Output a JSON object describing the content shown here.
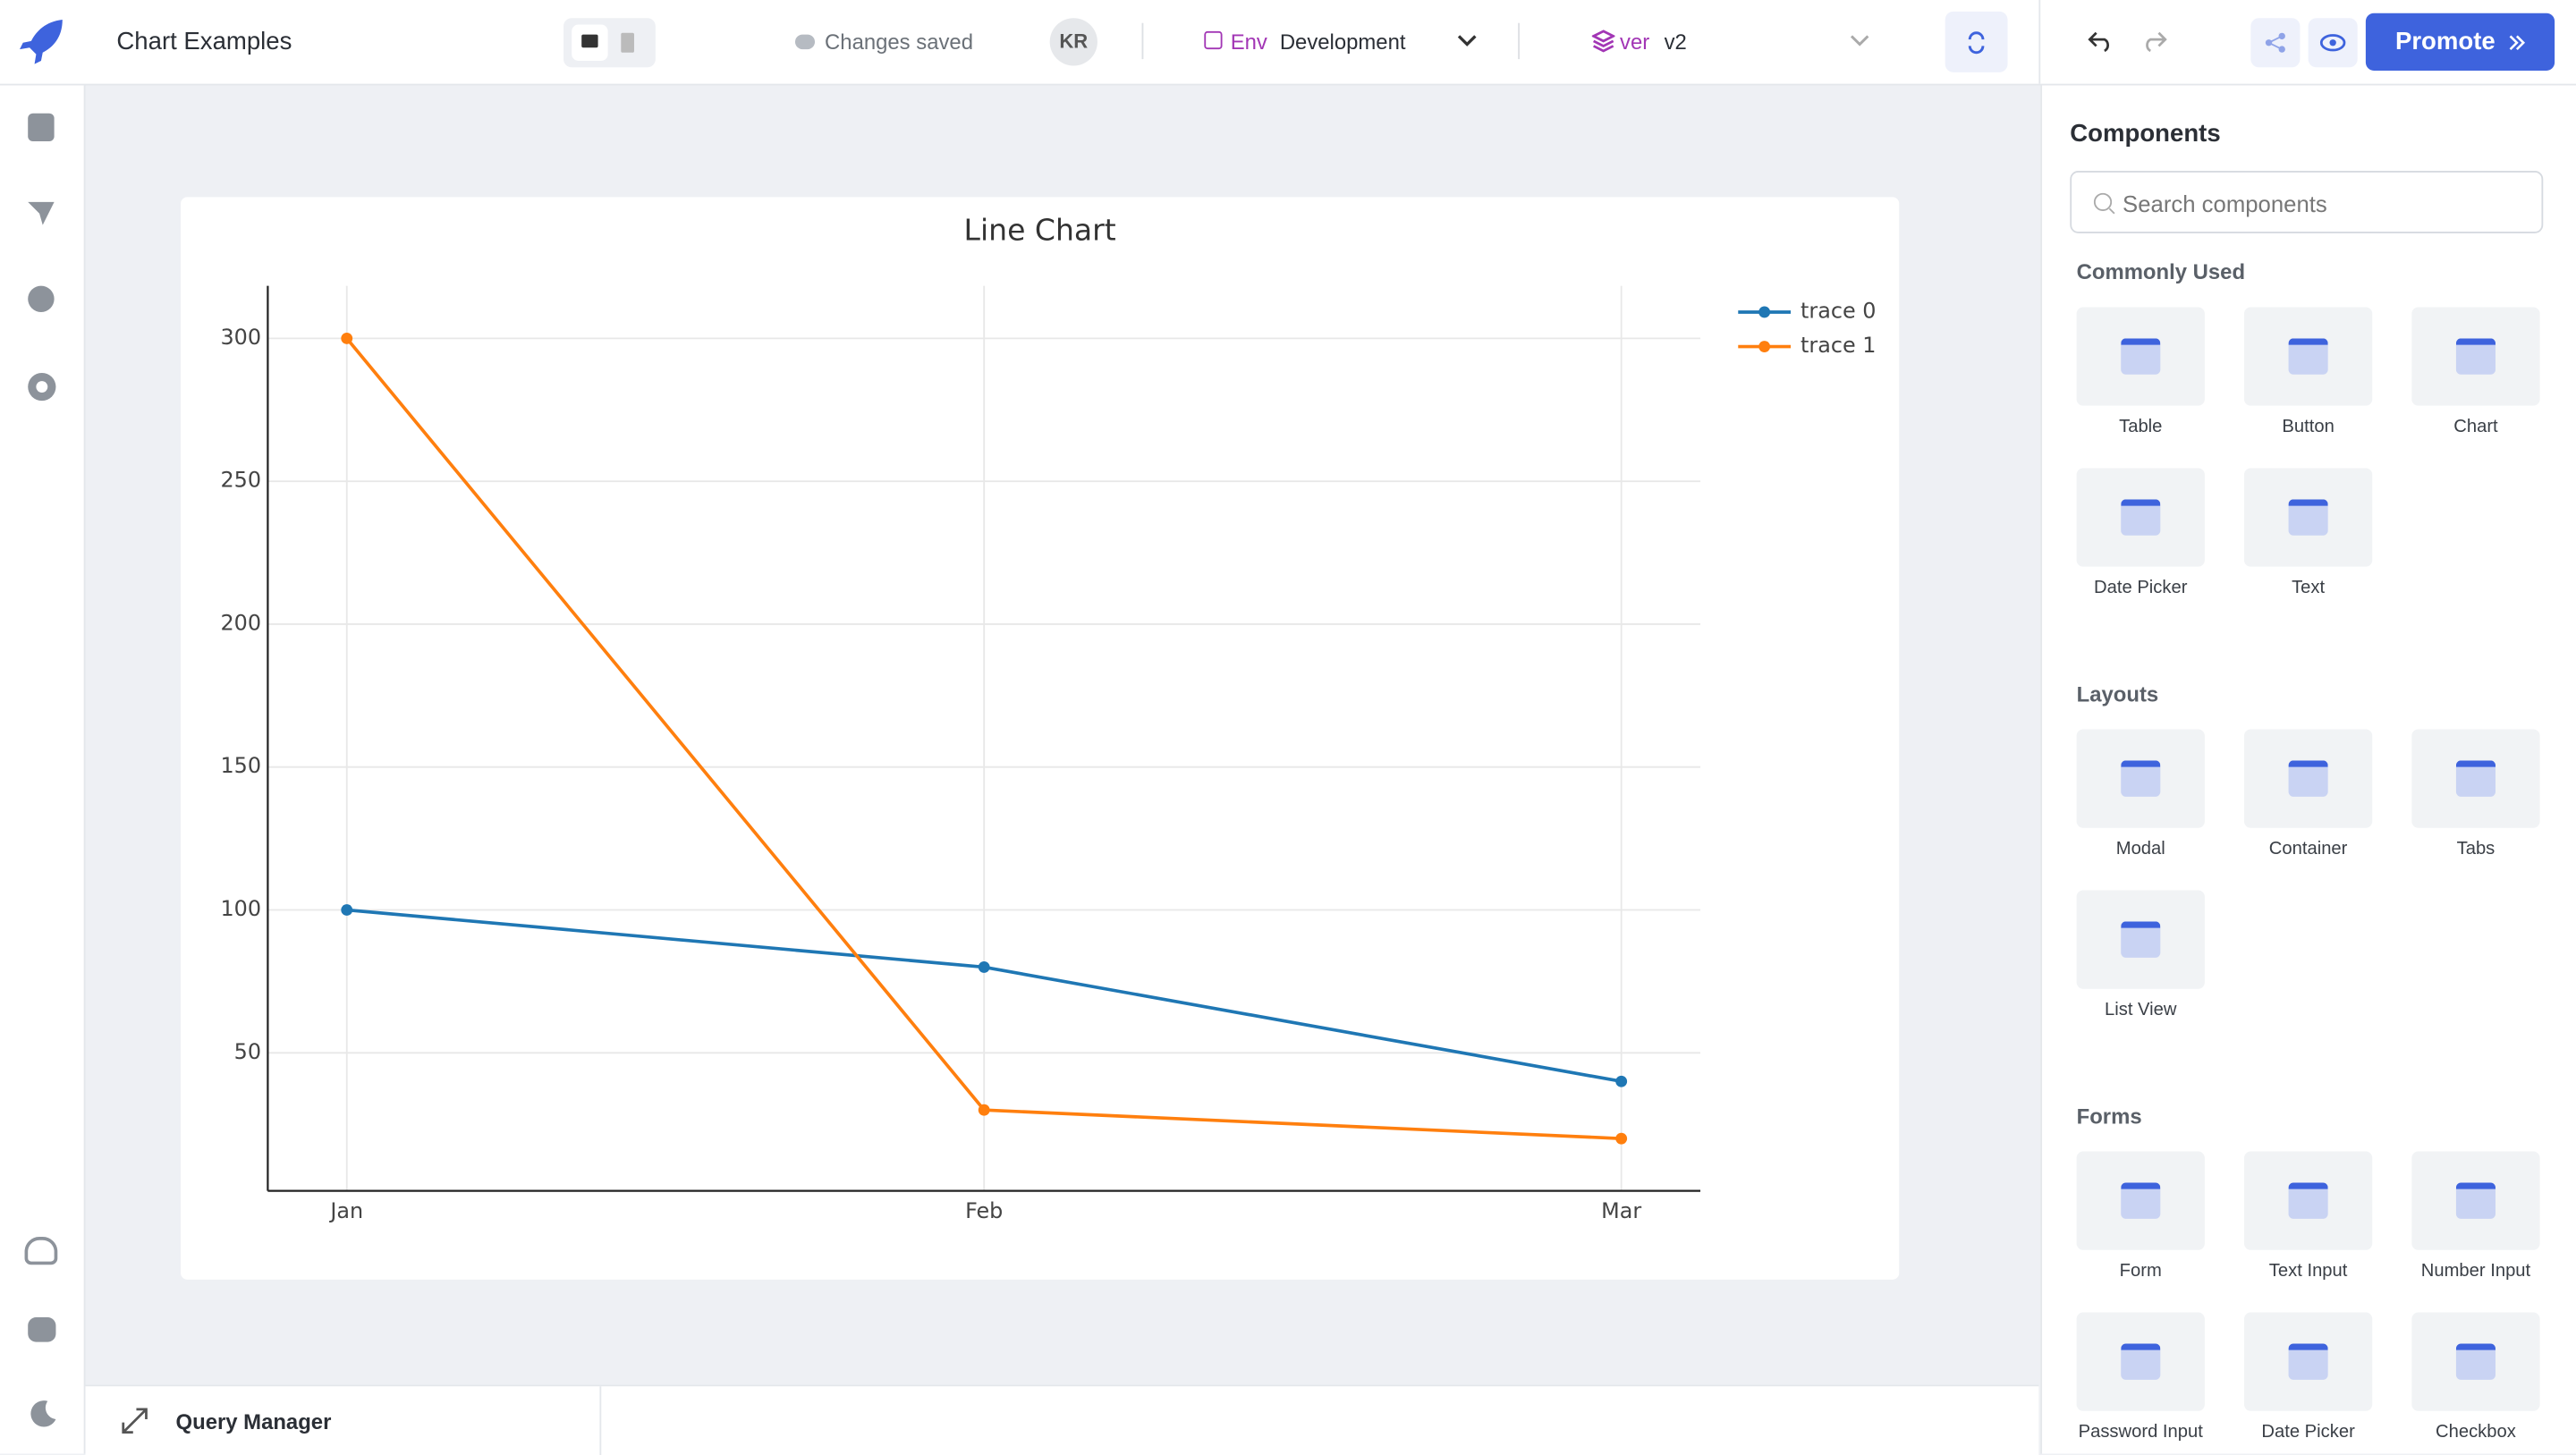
{
  "header": {
    "app_name": "Chart Examples",
    "save_status": "Changes saved",
    "user_initials": "KR",
    "env_label": "Env",
    "env_value": "Development",
    "version_label": "ver",
    "version_value": "v2",
    "promote": "Promote"
  },
  "components_panel": {
    "title": "Components",
    "search_placeholder": "Search components",
    "sections": [
      {
        "title": "Commonly Used",
        "items": [
          "Table",
          "Button",
          "Chart",
          "Date Picker",
          "Text"
        ]
      },
      {
        "title": "Layouts",
        "items": [
          "Modal",
          "Container",
          "Tabs",
          "List View"
        ]
      },
      {
        "title": "Forms",
        "items": [
          "Form",
          "Text Input",
          "Number Input",
          "Password Input",
          "Date Picker",
          "Checkbox"
        ]
      }
    ]
  },
  "bottom_bar": {
    "query_manager": "Query Manager"
  },
  "chart_data": {
    "type": "line",
    "title": "Line Chart",
    "categories": [
      "Jan",
      "Feb",
      "Mar"
    ],
    "series": [
      {
        "name": "trace 0",
        "color": "#1f77b4",
        "values": [
          100,
          80,
          40
        ]
      },
      {
        "name": "trace 1",
        "color": "#ff7f0e",
        "values": [
          300,
          30,
          20
        ]
      }
    ],
    "ylim": [
      1.7,
      318.4
    ],
    "yticks": [
      50,
      100,
      150,
      200,
      250,
      300
    ],
    "grid": true,
    "legend": "top-right"
  }
}
